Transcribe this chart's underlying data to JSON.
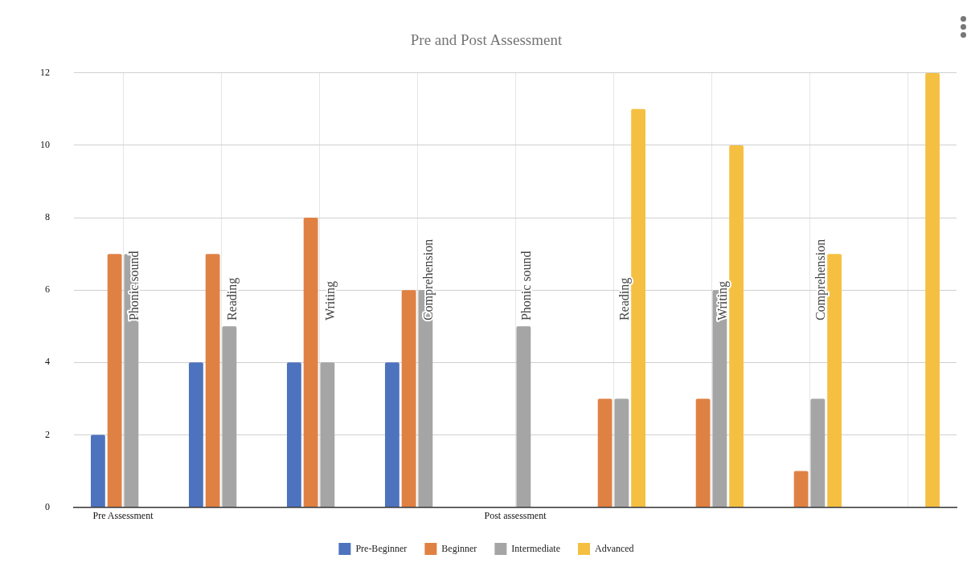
{
  "chart_data": {
    "type": "bar",
    "title": "Pre and Post Assessment",
    "categories": [
      "Pre Assessment",
      null,
      null,
      null,
      "Post assessment",
      null,
      null,
      null,
      null
    ],
    "series": [
      {
        "name": "Pre-Beginner",
        "color": "#4e73be",
        "values": [
          2,
          4,
          4,
          4,
          null,
          null,
          null,
          null,
          null
        ]
      },
      {
        "name": "Beginner",
        "color": "#e08144",
        "values": [
          7,
          7,
          8,
          6,
          null,
          3,
          3,
          1,
          null
        ]
      },
      {
        "name": "Intermediate",
        "color": "#a5a5a5",
        "values": [
          7,
          5,
          4,
          6,
          5,
          3,
          6,
          3,
          null
        ]
      },
      {
        "name": "Advanced",
        "color": "#f5c042",
        "values": [
          null,
          null,
          null,
          null,
          null,
          11,
          10,
          7,
          12
        ]
      }
    ],
    "annotations": [
      "Phonic sound",
      "Reading",
      "Writing",
      "Comprehension",
      "Phonic sound",
      "Reading",
      "Writing",
      "Comprehension"
    ],
    "ylim": [
      0,
      12
    ],
    "yticks": [
      0,
      2,
      4,
      6,
      8,
      10,
      12
    ],
    "grid": true,
    "legend": "bottom"
  }
}
